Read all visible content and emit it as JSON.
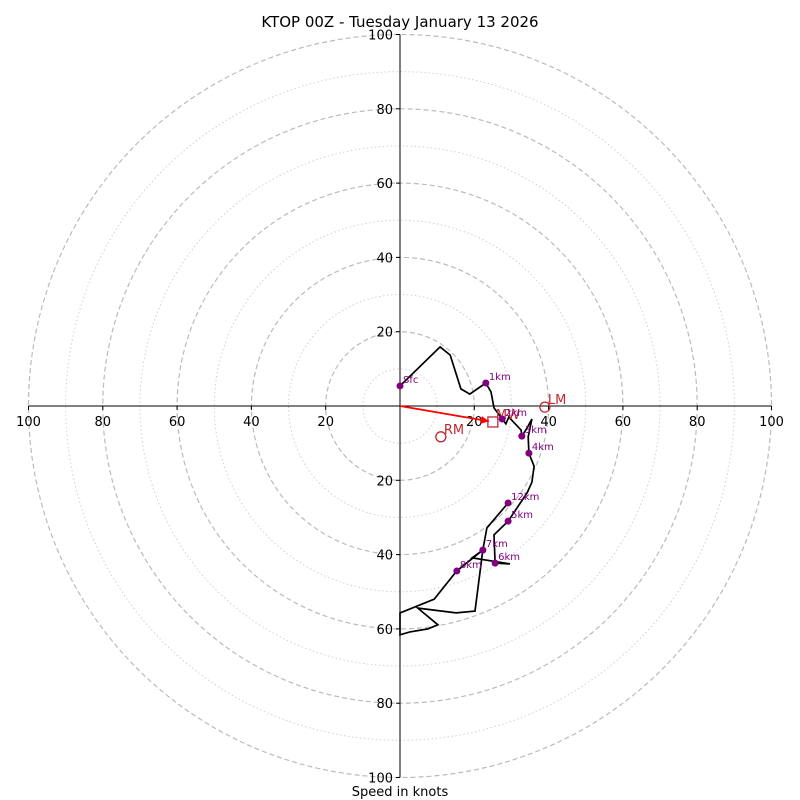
{
  "chart_data": {
    "type": "line",
    "subtype": "hodograph",
    "title": "KTOP 00Z - Tuesday January 13 2026",
    "xlabel": "Speed in knots",
    "ylabel": "",
    "xlim": [
      -100,
      100
    ],
    "ylim": [
      -100,
      100
    ],
    "grid": true,
    "ring_major": [
      20,
      40,
      60,
      80,
      100
    ],
    "ring_minor": [
      10,
      30,
      50,
      70,
      90
    ],
    "x_tick_labels": [
      "100",
      "80",
      "60",
      "40",
      "20",
      "20",
      "40",
      "60",
      "80",
      "100"
    ],
    "x_ticks": [
      -100,
      -80,
      -60,
      -40,
      -20,
      20,
      40,
      60,
      80,
      100
    ],
    "y_tick_labels": [
      "100",
      "80",
      "60",
      "40",
      "20",
      "20",
      "40",
      "60",
      "80",
      "100"
    ],
    "y_ticks": [
      100,
      80,
      60,
      40,
      20,
      -20,
      -40,
      -60,
      -80,
      -100
    ],
    "colors": {
      "trace": "#000000",
      "height_points": "#800080",
      "storm_motion": "#c0282d",
      "mean_wind_vector": "#ff0000",
      "grid": "#bbbbbb"
    },
    "trace": {
      "u": [
        0,
        10.8,
        13.5,
        16.4,
        18.8,
        23.1,
        24.5,
        25.3,
        27.5,
        28.5,
        29.3,
        32.6,
        32.8,
        34.2,
        35.5,
        34.5,
        34.7,
        36.1,
        35.5,
        34.2,
        29.1,
        25.3,
        25.6,
        29.6,
        19.4,
        22.3,
        15.3,
        9.2,
        0,
        0,
        2.7,
        7.5,
        10.2,
        4.8,
        15.1,
        20.2,
        22.3,
        23.4,
        29.1
      ],
      "v": [
        5.4,
        15.9,
        13.7,
        4.6,
        3.2,
        6.2,
        3.8,
        -0.5,
        -3.5,
        -4.8,
        -3.0,
        -6.5,
        -8.1,
        -5.9,
        -3.5,
        -8.3,
        -12.7,
        -16.2,
        -20.5,
        -23.4,
        -31.0,
        -34.7,
        -42.3,
        -42.5,
        -40.9,
        -38.8,
        -44.4,
        -52.0,
        -55.7,
        -61.6,
        -60.8,
        -60.0,
        -58.9,
        -54.4,
        -55.7,
        -55.2,
        -38.8,
        -32.8,
        -26.1
      ]
    },
    "height_points": [
      {
        "label": "Sfc",
        "u": 0,
        "v": 5.4
      },
      {
        "label": "1km",
        "u": 23.1,
        "v": 6.2
      },
      {
        "label": "2km",
        "u": 27.5,
        "v": -3.5
      },
      {
        "label": "3km",
        "u": 32.8,
        "v": -8.1
      },
      {
        "label": "4km",
        "u": 34.7,
        "v": -12.7
      },
      {
        "label": "5km",
        "u": 29.1,
        "v": -31.0
      },
      {
        "label": "6km",
        "u": 25.6,
        "v": -42.3
      },
      {
        "label": "7km",
        "u": 22.3,
        "v": -38.8
      },
      {
        "label": "8km",
        "u": 15.3,
        "v": -44.4
      },
      {
        "label": "12km",
        "u": 29.1,
        "v": -26.1
      }
    ],
    "storm_motion": [
      {
        "label": "LM",
        "marker": "circle",
        "u": 39.0,
        "v": -0.3
      },
      {
        "label": "RM",
        "marker": "circle",
        "u": 11.0,
        "v": -8.3
      },
      {
        "label": "MW",
        "marker": "square",
        "u": 25.0,
        "v": -4.3
      }
    ],
    "mean_wind_vector": {
      "from": [
        0,
        0
      ],
      "to": [
        25.0,
        -4.3
      ]
    }
  }
}
